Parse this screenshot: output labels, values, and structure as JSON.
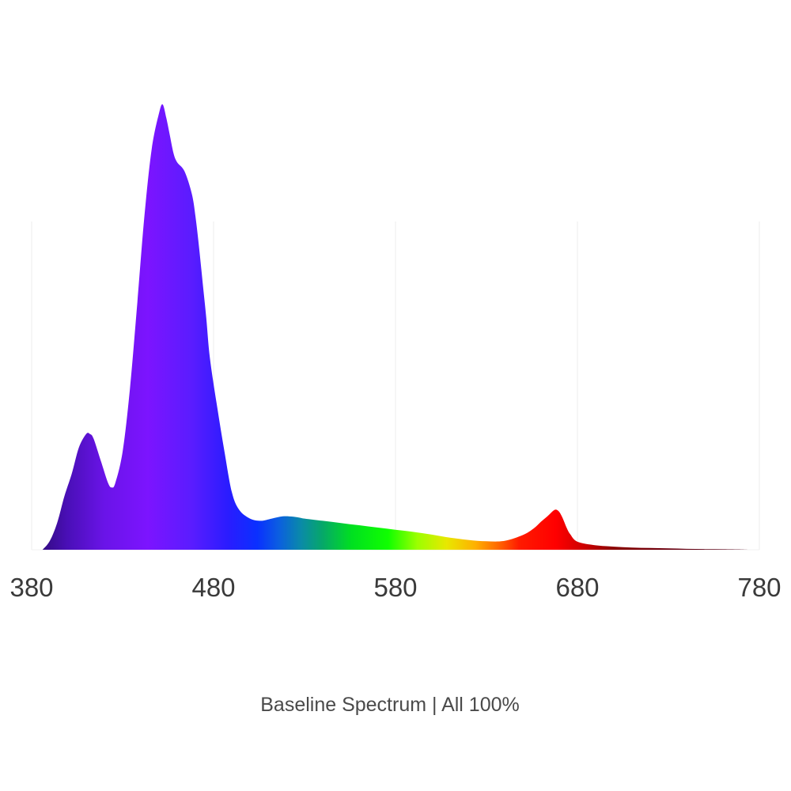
{
  "chart_data": {
    "type": "area",
    "title": "Baseline Spectrum  | All 100%",
    "xlabel": "",
    "ylabel": "",
    "xlim": [
      380,
      780
    ],
    "ylim": [
      0,
      1
    ],
    "x_ticks": [
      380,
      480,
      580,
      680,
      780
    ],
    "x_tick_labels": [
      "380",
      "480",
      "580",
      "680",
      "780"
    ],
    "grid": "vertical lines at ticks",
    "fill": "visible-spectrum color gradient",
    "series": [
      {
        "x": [
          386,
          390,
          394,
          398,
          402,
          406,
          410,
          412,
          414,
          418,
          422,
          424,
          426,
          430,
          434,
          438,
          442,
          446,
          450,
          452,
          454,
          456,
          458,
          460,
          464,
          468,
          470,
          472,
          474,
          476,
          478,
          482,
          486,
          490,
          494,
          500,
          506,
          512,
          518,
          524,
          530,
          540,
          550,
          560,
          570,
          580,
          590,
          600,
          610,
          620,
          630,
          640,
          650,
          656,
          660,
          664,
          666,
          668,
          670,
          672,
          674,
          676,
          680,
          690,
          700,
          710,
          720,
          730,
          740,
          750,
          760,
          770,
          776
        ],
        "y": [
          0.0,
          0.02,
          0.06,
          0.12,
          0.17,
          0.23,
          0.26,
          0.26,
          0.25,
          0.2,
          0.15,
          0.14,
          0.15,
          0.22,
          0.36,
          0.55,
          0.75,
          0.9,
          0.98,
          1.0,
          0.97,
          0.93,
          0.89,
          0.87,
          0.85,
          0.8,
          0.75,
          0.68,
          0.6,
          0.52,
          0.43,
          0.32,
          0.22,
          0.13,
          0.09,
          0.07,
          0.065,
          0.07,
          0.075,
          0.074,
          0.07,
          0.065,
          0.06,
          0.055,
          0.05,
          0.045,
          0.04,
          0.034,
          0.027,
          0.022,
          0.019,
          0.02,
          0.033,
          0.048,
          0.063,
          0.077,
          0.085,
          0.09,
          0.085,
          0.07,
          0.05,
          0.035,
          0.018,
          0.01,
          0.007,
          0.005,
          0.004,
          0.003,
          0.002,
          0.0015,
          0.001,
          0.0005,
          0.0
        ]
      }
    ]
  }
}
